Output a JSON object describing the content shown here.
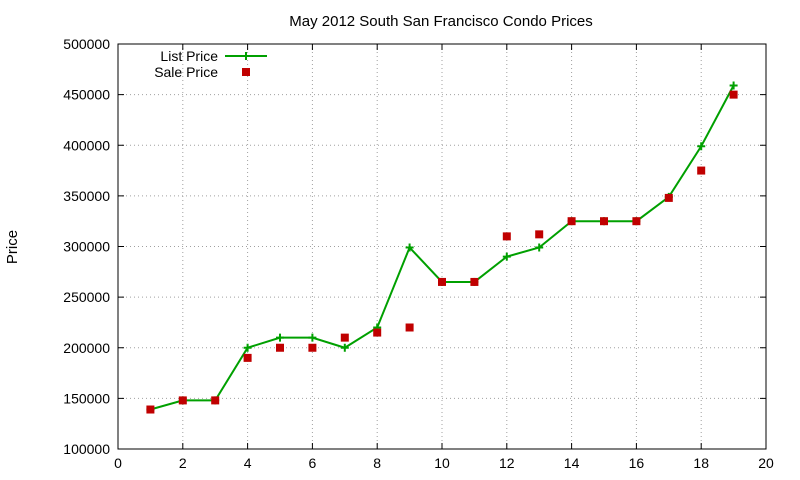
{
  "chart_data": {
    "type": "line",
    "title": "May 2012 South San Francisco Condo Prices",
    "xlabel": "",
    "ylabel": "Price",
    "xlim": [
      0,
      20
    ],
    "ylim": [
      100000,
      500000
    ],
    "xticks": [
      0,
      2,
      4,
      6,
      8,
      10,
      12,
      14,
      16,
      18,
      20
    ],
    "yticks": [
      100000,
      150000,
      200000,
      250000,
      300000,
      350000,
      400000,
      450000,
      500000
    ],
    "grid": true,
    "legend_position": "top-left",
    "series": [
      {
        "name": "List Price",
        "style": "line-with-plus-markers",
        "color": "#00a000",
        "x": [
          1,
          2,
          3,
          4,
          5,
          6,
          7,
          8,
          9,
          10,
          11,
          12,
          13,
          14,
          15,
          16,
          17,
          18,
          19
        ],
        "y": [
          139000,
          148000,
          148000,
          200000,
          210000,
          210000,
          200000,
          220000,
          299000,
          265000,
          265000,
          290000,
          299000,
          325000,
          325000,
          325000,
          349000,
          399000,
          459000
        ]
      },
      {
        "name": "Sale Price",
        "style": "square-points",
        "color": "#c00000",
        "x": [
          1,
          2,
          3,
          4,
          5,
          6,
          7,
          8,
          9,
          10,
          11,
          12,
          13,
          14,
          15,
          16,
          17,
          18,
          19
        ],
        "y": [
          139000,
          148000,
          148000,
          190000,
          200000,
          200000,
          210000,
          215000,
          220000,
          265000,
          265000,
          310000,
          312000,
          325000,
          325000,
          325000,
          348000,
          375000,
          450000
        ]
      }
    ]
  }
}
